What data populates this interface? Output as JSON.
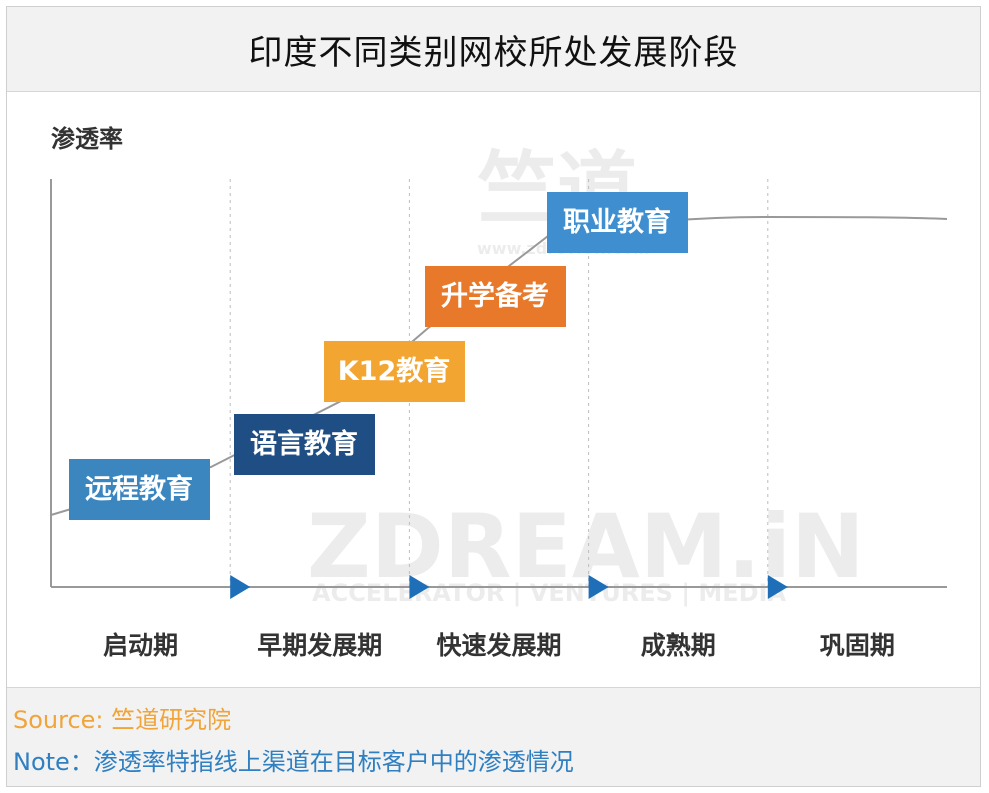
{
  "title": "印度不同类别网校所处发展阶段",
  "source": "Source: 竺道研究院",
  "note": "Note：渗透率特指线上渠道在目标客户中的渗透情况",
  "watermark": {
    "cn": "竺道",
    "url": "www.zdreview.com",
    "brand": "ZDREAM.iN",
    "tagline": "ACCELERATOR | VENTURES | MEDIA"
  },
  "chart_data": {
    "type": "line",
    "ylabel": "渗透率",
    "xlabel": "",
    "stages": [
      "启动期",
      "早期发展期",
      "快速发展期",
      "成熟期",
      "巩固期"
    ],
    "curve_description": "S-shaped adoption curve rising through the stages and flattening in 成熟期/巩固期",
    "categories": [
      {
        "name": "远程教育",
        "stage_index": 0,
        "color": "#3c86c0"
      },
      {
        "name": "语言教育",
        "stage_index": 1,
        "color": "#1f4e85"
      },
      {
        "name": "K12教育",
        "stage_index": 2,
        "color": "#f3a532"
      },
      {
        "name": "升学备考",
        "stage_index": 2,
        "color": "#e8782a"
      },
      {
        "name": "职业教育",
        "stage_index": 3,
        "color": "#3f8fd0"
      }
    ],
    "grid": "vertical dotted stage dividers",
    "axis_colors": {
      "axis": "#999999",
      "curve": "#999999",
      "arrow": "#1f6fb8"
    }
  }
}
